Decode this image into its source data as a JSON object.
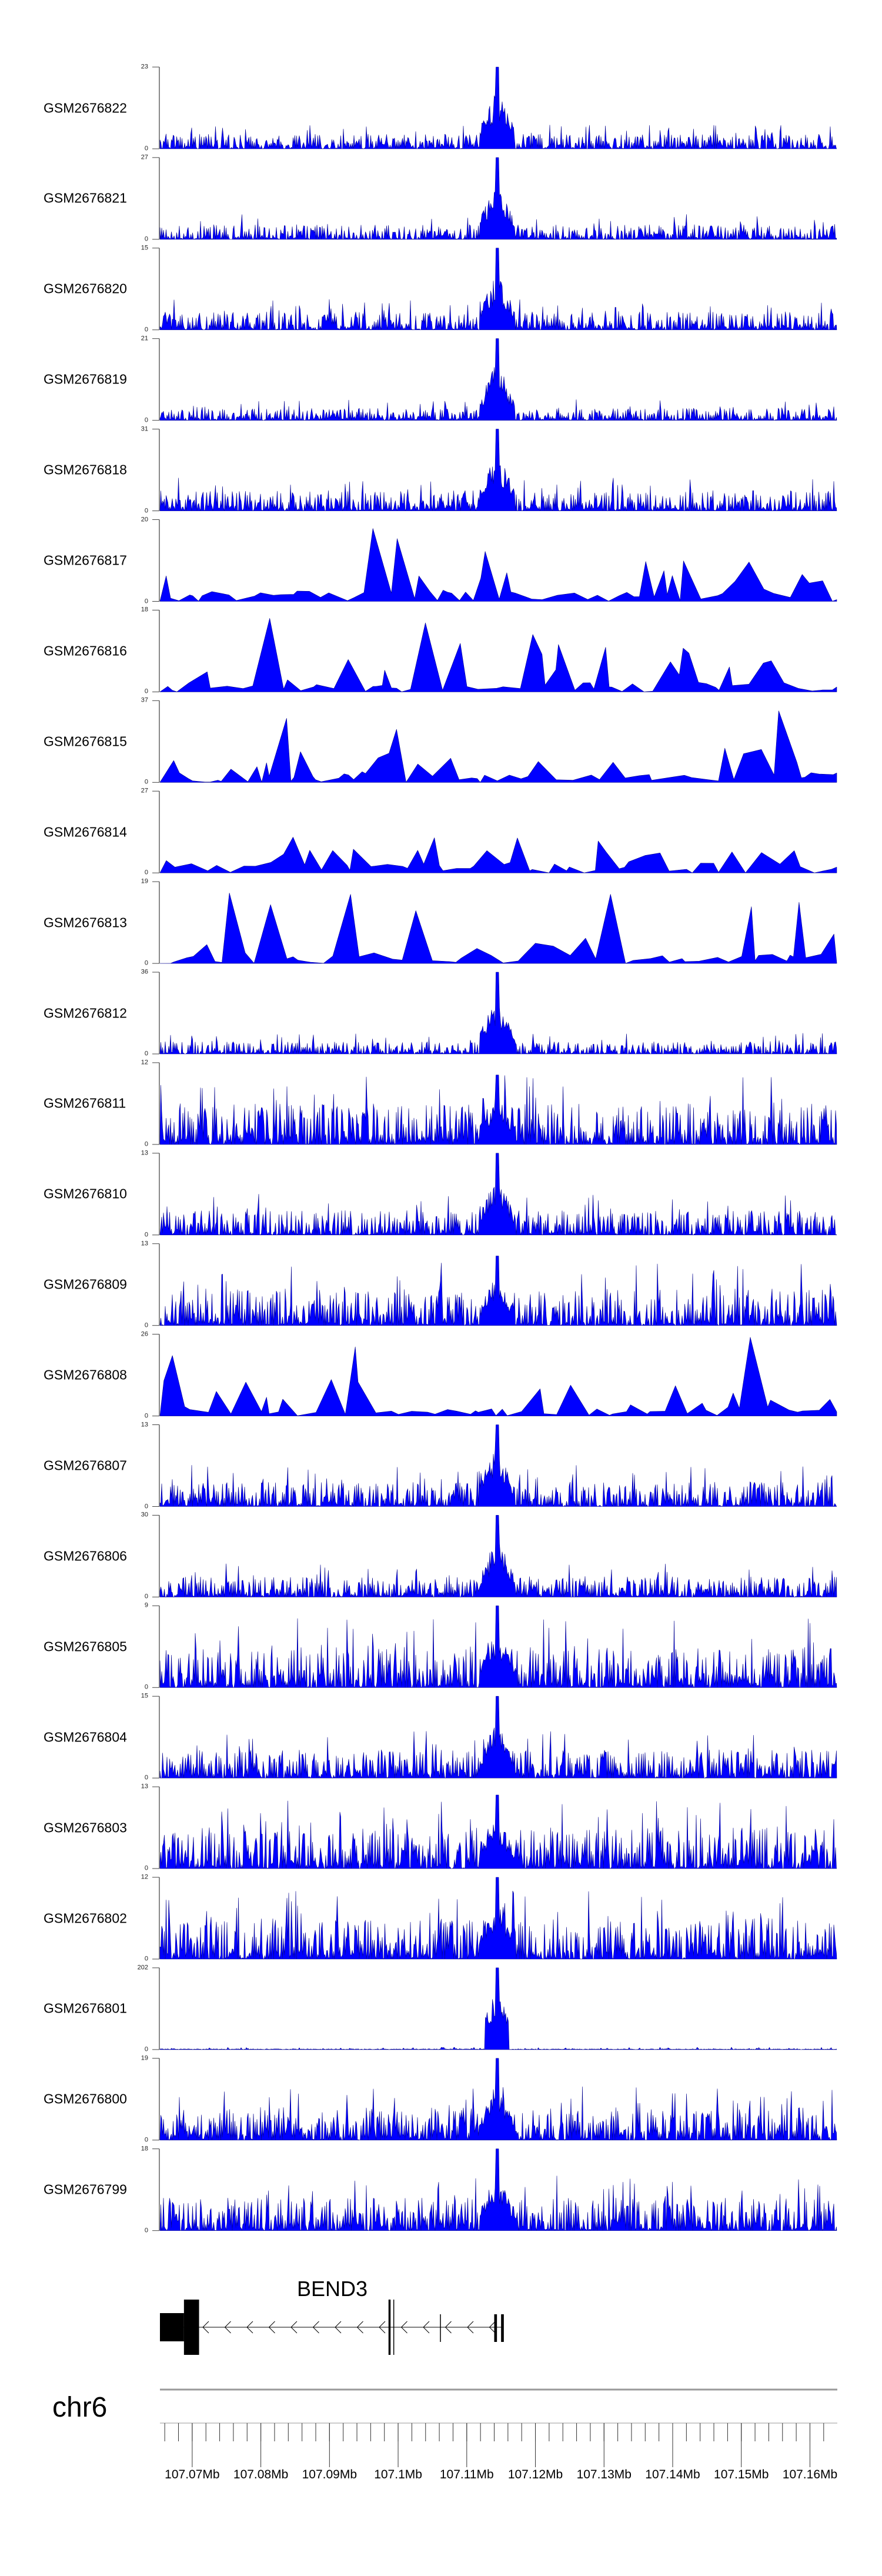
{
  "chart_data": {
    "type": "area",
    "title": "",
    "xlabel": "",
    "ylabel": "",
    "grid": false,
    "chromosome": "chr6",
    "xlim_mb": [
      107.0653,
      107.1639
    ],
    "x_tick_labels": [
      "107.07Mb",
      "107.08Mb",
      "107.09Mb",
      "107.1Mb",
      "107.11Mb",
      "107.12Mb",
      "107.13Mb",
      "107.14Mb",
      "107.15Mb",
      "107.16Mb"
    ],
    "x_tick_values_mb": [
      107.07,
      107.08,
      107.09,
      107.1,
      107.11,
      107.12,
      107.13,
      107.14,
      107.15,
      107.16
    ],
    "minor_tick_step_mb": 0.002,
    "fill_color": "#0000ff",
    "outline_color": "#00008b",
    "peak_position_mb": 107.1144,
    "tracks": [
      {
        "name": "GSM2676822",
        "ymin": 0,
        "ymax": 23,
        "style": "dense",
        "base": 0.18,
        "peak": 1.0
      },
      {
        "name": "GSM2676821",
        "ymin": 0,
        "ymax": 27,
        "style": "dense",
        "base": 0.18,
        "peak": 1.0
      },
      {
        "name": "GSM2676820",
        "ymin": 0,
        "ymax": 15,
        "style": "dense",
        "base": 0.22,
        "peak": 1.0
      },
      {
        "name": "GSM2676819",
        "ymin": 0,
        "ymax": 21,
        "style": "dense",
        "base": 0.15,
        "peak": 1.0
      },
      {
        "name": "GSM2676818",
        "ymin": 0,
        "ymax": 31,
        "style": "dense",
        "base": 0.25,
        "peak": 1.0
      },
      {
        "name": "GSM2676817",
        "ymin": 0,
        "ymax": 20,
        "style": "sparse",
        "base": 0.5,
        "peak": 0
      },
      {
        "name": "GSM2676816",
        "ymin": 0,
        "ymax": 18,
        "style": "sparse",
        "base": 0.6,
        "peak": 0
      },
      {
        "name": "GSM2676815",
        "ymin": 0,
        "ymax": 37,
        "style": "sparse",
        "base": 0.45,
        "peak": 0
      },
      {
        "name": "GSM2676814",
        "ymin": 0,
        "ymax": 27,
        "style": "sparse",
        "base": 0.45,
        "peak": 0
      },
      {
        "name": "GSM2676813",
        "ymin": 0,
        "ymax": 19,
        "style": "sparse",
        "base": 0.75,
        "peak": 0
      },
      {
        "name": "GSM2676812",
        "ymin": 0,
        "ymax": 36,
        "style": "dense",
        "base": 0.15,
        "peak": 1.0
      },
      {
        "name": "GSM2676811",
        "ymin": 0,
        "ymax": 12,
        "style": "dense",
        "base": 0.5,
        "peak": 0.85
      },
      {
        "name": "GSM2676810",
        "ymin": 0,
        "ymax": 13,
        "style": "dense",
        "base": 0.3,
        "peak": 1.0
      },
      {
        "name": "GSM2676809",
        "ymin": 0,
        "ymax": 13,
        "style": "dense",
        "base": 0.45,
        "peak": 0.85
      },
      {
        "name": "GSM2676808",
        "ymin": 0,
        "ymax": 26,
        "style": "sparse",
        "base": 0.5,
        "peak": 0
      },
      {
        "name": "GSM2676807",
        "ymin": 0,
        "ymax": 13,
        "style": "dense",
        "base": 0.3,
        "peak": 1.0
      },
      {
        "name": "GSM2676806",
        "ymin": 0,
        "ymax": 30,
        "style": "dense",
        "base": 0.25,
        "peak": 1.0
      },
      {
        "name": "GSM2676805",
        "ymin": 0,
        "ymax": 9,
        "style": "dense",
        "base": 0.5,
        "peak": 1.0
      },
      {
        "name": "GSM2676804",
        "ymin": 0,
        "ymax": 15,
        "style": "dense",
        "base": 0.35,
        "peak": 1.0
      },
      {
        "name": "GSM2676803",
        "ymin": 0,
        "ymax": 13,
        "style": "dense",
        "base": 0.5,
        "peak": 0.9
      },
      {
        "name": "GSM2676802",
        "ymin": 0,
        "ymax": 12,
        "style": "dense",
        "base": 0.5,
        "peak": 1.0
      },
      {
        "name": "GSM2676801",
        "ymin": 0,
        "ymax": 202,
        "style": "flat",
        "base": 0.015,
        "peak": 1.0
      },
      {
        "name": "GSM2676800",
        "ymin": 0,
        "ymax": 19,
        "style": "dense",
        "base": 0.4,
        "peak": 1.0
      },
      {
        "name": "GSM2676799",
        "ymin": 0,
        "ymax": 18,
        "style": "dense",
        "base": 0.4,
        "peak": 1.0
      }
    ],
    "gene": {
      "name": "BEND3",
      "strand": "-",
      "start_mb": 107.0653,
      "end_mb": 107.1153,
      "utr": [
        [
          107.0653,
          107.0688
        ]
      ],
      "cds": [
        [
          107.0688,
          107.071
        ],
        [
          107.0986,
          107.0989
        ]
      ],
      "exons_thin": [
        [
          107.0993,
          107.0994
        ]
      ],
      "short_exons": [
        [
          107.1061,
          107.1062
        ],
        [
          107.114,
          107.1144
        ],
        [
          107.115,
          107.1154
        ]
      ]
    }
  }
}
